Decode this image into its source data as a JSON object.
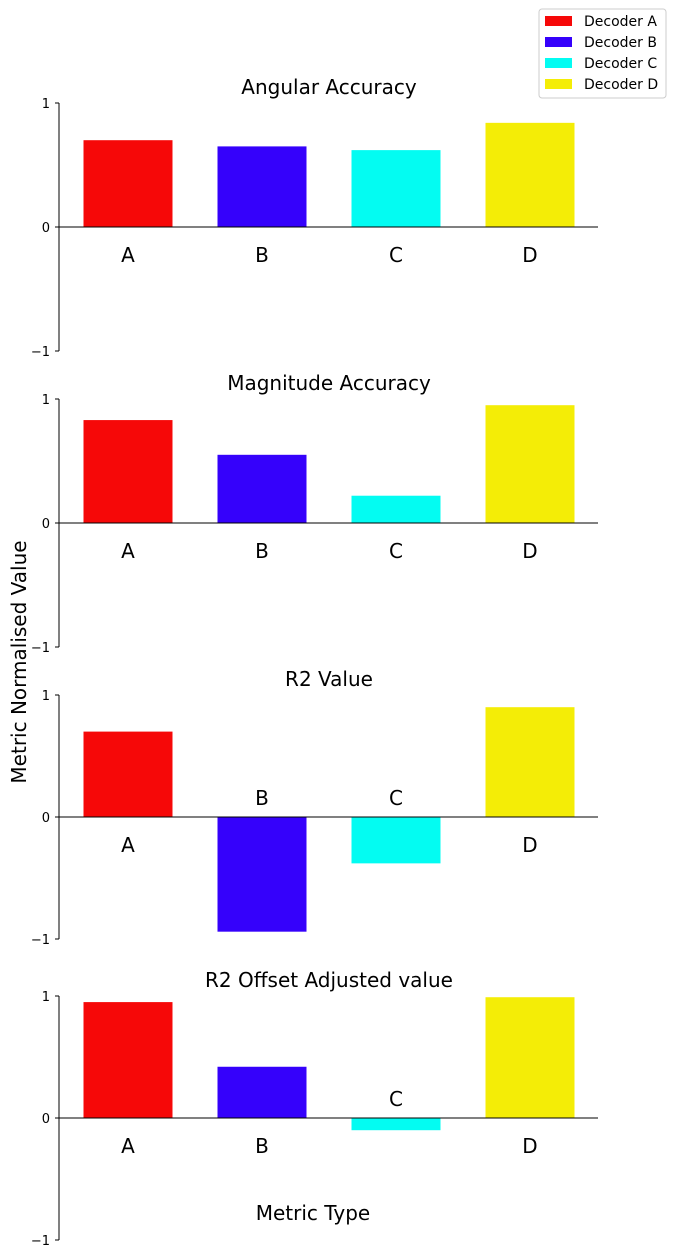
{
  "chart_data": {
    "type": "bar",
    "ylabel": "Metric Normalised Value",
    "xlabel": "Metric Type",
    "ylim": [
      -1,
      1
    ],
    "yticks": [
      -1,
      0,
      1
    ],
    "ytick_labels": [
      "−1",
      "0",
      "1"
    ],
    "categories": [
      "A",
      "B",
      "C",
      "D"
    ],
    "colors": [
      "#f60808",
      "#3501fb",
      "#03fcf2",
      "#f4ed06"
    ],
    "legend": {
      "placement": "top-right",
      "entries": [
        "Decoder A",
        "Decoder B",
        "Decoder C",
        "Decoder D"
      ]
    },
    "panels": [
      {
        "title": "Angular Accuracy",
        "values": [
          0.7,
          0.65,
          0.62,
          0.84
        ]
      },
      {
        "title": "Magnitude Accuracy",
        "values": [
          0.83,
          0.55,
          0.22,
          0.95
        ]
      },
      {
        "title": "R2 Value",
        "values": [
          0.7,
          -0.94,
          -0.38,
          0.9
        ]
      },
      {
        "title": "R2 Offset Adjusted value",
        "values": [
          0.95,
          0.42,
          -0.1,
          0.99
        ]
      }
    ]
  }
}
